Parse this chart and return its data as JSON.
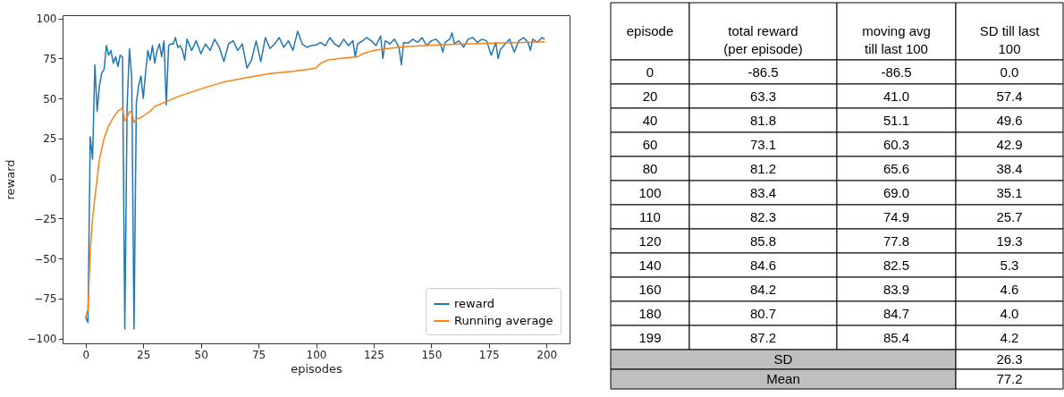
{
  "chart_data": [
    {
      "type": "line",
      "xlabel": "episodes",
      "ylabel": "reward",
      "xlim": [
        -10,
        210
      ],
      "ylim": [
        -103,
        102
      ],
      "xticks": [
        0,
        25,
        50,
        75,
        100,
        125,
        150,
        175,
        200
      ],
      "yticks": [
        {
          "value": -100,
          "label": "−100"
        },
        {
          "value": -75,
          "label": "−75"
        },
        {
          "value": -50,
          "label": "−50"
        },
        {
          "value": -25,
          "label": "−25"
        },
        0,
        25,
        50,
        75,
        100
      ],
      "grid": false,
      "legend": "bottom right",
      "series": [
        {
          "name": "reward",
          "color": "#1f77b4",
          "x": [
            0,
            1,
            2,
            3,
            4,
            5,
            6,
            7,
            8,
            9,
            10,
            11,
            12,
            13,
            14,
            15,
            16,
            17,
            18,
            19,
            20,
            21,
            22,
            23,
            24,
            25,
            26,
            27,
            28,
            29,
            30,
            31,
            32,
            33,
            34,
            35,
            36,
            37,
            38,
            39,
            40,
            41,
            42,
            43,
            44,
            46,
            48,
            50,
            52,
            54,
            56,
            58,
            60,
            62,
            64,
            66,
            68,
            70,
            72,
            74,
            76,
            78,
            80,
            82,
            84,
            86,
            88,
            90,
            92,
            94,
            96,
            98,
            100,
            102,
            104,
            106,
            108,
            110,
            112,
            114,
            116,
            117,
            118,
            120,
            122,
            124,
            126,
            128,
            129,
            130,
            132,
            134,
            136,
            137,
            138,
            140,
            142,
            144,
            146,
            148,
            150,
            152,
            154,
            155,
            156,
            158,
            159,
            160,
            162,
            164,
            166,
            168,
            170,
            172,
            174,
            176,
            178,
            179,
            180,
            182,
            184,
            186,
            188,
            190,
            192,
            193,
            194,
            196,
            198,
            199
          ],
          "values": [
            -86.5,
            -90,
            26,
            12,
            71,
            42,
            58,
            66,
            68,
            83,
            77,
            80,
            72,
            76,
            70,
            77,
            76,
            -94,
            45,
            81,
            63.3,
            -94,
            47,
            58,
            64,
            50,
            66,
            80,
            74,
            83,
            72,
            80,
            84,
            76,
            86,
            46,
            83,
            84,
            84,
            88,
            81.8,
            83,
            80,
            74,
            87,
            80,
            86,
            78,
            84,
            80,
            87,
            82,
            73.1,
            84,
            86,
            80,
            84,
            69,
            74,
            86,
            73,
            88,
            81.2,
            84,
            88,
            82,
            86,
            80,
            92,
            84,
            82,
            83,
            83.4,
            85,
            83,
            88,
            84,
            82.3,
            87,
            83,
            86,
            76,
            84,
            85.8,
            88,
            86,
            83,
            89,
            75,
            86,
            84,
            87,
            82,
            71,
            85,
            84.6,
            87,
            85,
            88,
            83,
            86,
            87,
            84,
            79,
            85,
            87,
            91,
            84.2,
            86,
            82,
            87,
            88,
            85,
            87,
            86,
            77,
            85,
            75,
            80.7,
            84,
            87,
            79,
            86,
            88,
            85,
            80,
            87,
            85,
            88,
            87.2
          ]
        },
        {
          "name": "Running average",
          "color": "#ff7f0e",
          "x": [
            0,
            1,
            2,
            3,
            4,
            5,
            6,
            8,
            10,
            12,
            14,
            16,
            17,
            18,
            19,
            20,
            21,
            22,
            24,
            26,
            28,
            30,
            35,
            40,
            50,
            60,
            70,
            80,
            90,
            98,
            100,
            102,
            105,
            110,
            118,
            120,
            125,
            130,
            140,
            150,
            160,
            170,
            180,
            190,
            199
          ],
          "values": [
            -86.5,
            -82,
            -45,
            -25,
            -12,
            0,
            12,
            25,
            33,
            38,
            42,
            44,
            36,
            38,
            42,
            41,
            35,
            37,
            38,
            40,
            42,
            45,
            48,
            51.1,
            56,
            60.3,
            63,
            65.6,
            67,
            68.5,
            69,
            72,
            74,
            74.9,
            76,
            77.8,
            80,
            81,
            82.5,
            83.3,
            83.9,
            84.3,
            84.7,
            85,
            85.4
          ]
        }
      ]
    },
    {
      "type": "other",
      "annotations": [
        "episode",
        "total reward (per episode)",
        "moving avg till last 100",
        "SD till last 100",
        "0",
        "-86.5",
        "-86.5",
        "0.0",
        "20",
        "63.3",
        "41.0",
        "57.4",
        "40",
        "81.8",
        "51.1",
        "49.6",
        "60",
        "73.1",
        "60.3",
        "42.9",
        "80",
        "81.2",
        "65.6",
        "38.4",
        "100",
        "83.4",
        "69.0",
        "35.1",
        "110",
        "82.3",
        "74.9",
        "25.7",
        "120",
        "85.8",
        "77.8",
        "19.3",
        "140",
        "84.6",
        "82.5",
        "5.3",
        "160",
        "84.2",
        "83.9",
        "4.6",
        "180",
        "80.7",
        "84.7",
        "4.0",
        "199",
        "87.2",
        "85.4",
        "4.2",
        "SD",
        "26.3",
        "Mean",
        "77.2"
      ]
    }
  ]
}
